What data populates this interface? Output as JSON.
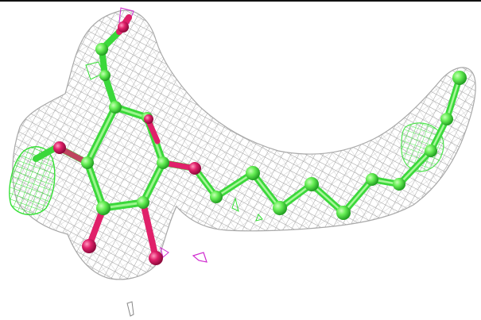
{
  "figure": {
    "subject": "ligand-electron-density",
    "colors": {
      "background": "#ffffff",
      "mesh_gray": "#9a9a9a",
      "difference_green": "#35e035",
      "difference_magenta": "#d02bd0",
      "carbon": "#66ee55",
      "carbon_shade": "#2fbf2f",
      "oxygen": "#e0206a",
      "frame_line": "#111111"
    }
  }
}
